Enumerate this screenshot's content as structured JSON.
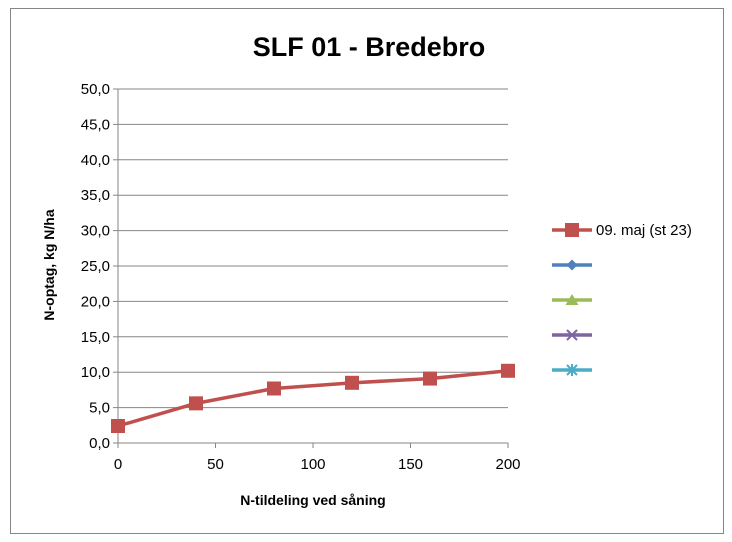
{
  "chart_data": {
    "type": "line",
    "title": "SLF 01 - Bredebro",
    "xlabel": "N-tildeling ved såning",
    "ylabel": "N-optag, kg N/ha",
    "xlim": [
      0,
      200
    ],
    "ylim": [
      0,
      50
    ],
    "x_ticks": [
      0,
      50,
      100,
      150,
      200
    ],
    "y_ticks": [
      "0,0",
      "5,0",
      "10,0",
      "15,0",
      "20,0",
      "25,0",
      "30,0",
      "35,0",
      "40,0",
      "45,0",
      "50,0"
    ],
    "grid": true,
    "legend_position": "right",
    "series": [
      {
        "name": "09. maj (st 23)",
        "color": "#c0504d",
        "marker": "square",
        "x": [
          0,
          40,
          80,
          120,
          160,
          200
        ],
        "values": [
          2.4,
          5.6,
          7.7,
          8.5,
          9.1,
          10.2
        ]
      },
      {
        "name": "",
        "color": "#4f81bd",
        "marker": "diamond",
        "x": [],
        "values": []
      },
      {
        "name": "",
        "color": "#9bbb59",
        "marker": "triangle",
        "x": [],
        "values": []
      },
      {
        "name": "",
        "color": "#8064a2",
        "marker": "x",
        "x": [],
        "values": []
      },
      {
        "name": "",
        "color": "#4bacc6",
        "marker": "star",
        "x": [],
        "values": []
      }
    ]
  }
}
